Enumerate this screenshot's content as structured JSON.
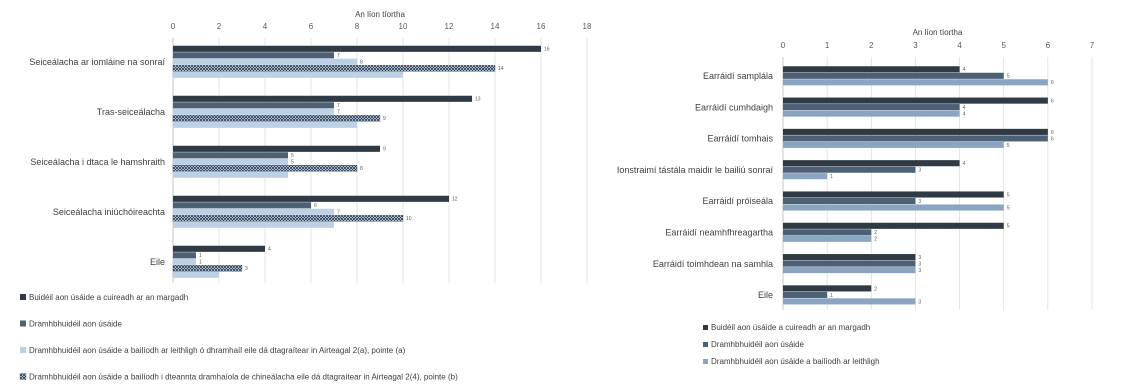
{
  "colors": {
    "dark": "#2f3a44",
    "mid": "#4c6175",
    "light": "#bcd0e6",
    "steel": "#8ba4c2",
    "hatch_fg": "#243b5a",
    "grid": "#d9d9d9",
    "axis": "#bfbfbf"
  },
  "chart_data": [
    {
      "type": "bar",
      "orientation": "horizontal",
      "title": "",
      "xlabel": "An líon tíortha",
      "ylabel": "",
      "xlim": [
        0,
        18
      ],
      "xticks": [
        0,
        2,
        4,
        6,
        8,
        10,
        12,
        14,
        16,
        18
      ],
      "grid": true,
      "legend_position": "bottom-left",
      "categories": [
        "Seiceálacha ar iomláine na sonraí",
        "Tras-seiceálacha",
        "Seiceálacha i dtaca le hamshraith",
        "Seiceálacha iniúchóireachta",
        "Eile"
      ],
      "series": [
        {
          "name": "Buidéil aon úsáide a cuireadh ar an margadh",
          "color": "dark",
          "values": [
            16,
            13,
            9,
            12,
            4
          ]
        },
        {
          "name": "Dramhbhuidéil aon úsáide",
          "color": "mid",
          "values": [
            7,
            7,
            5,
            6,
            1
          ]
        },
        {
          "name": "Dramhbhuidéil aon úsáide a bailíodh ar leithligh ó dhramhaíl eile dá dtagraítear in Airteagal 2(a), pointe (a)",
          "color": "light",
          "values": [
            8,
            7,
            5,
            7,
            1
          ]
        },
        {
          "name": "Dramhbhuidéil aon úsáide a bailíodh i dteannta dramhaíola de chineálacha eile dá dtagraítear in Airteagal 2(4), pointe (b)",
          "color": "hatch",
          "values": [
            14,
            9,
            8,
            10,
            3
          ]
        },
        {
          "name": "",
          "color": "light",
          "values": [
            10,
            8,
            5,
            7,
            2
          ]
        }
      ]
    },
    {
      "type": "bar",
      "orientation": "horizontal",
      "title": "",
      "xlabel": "An líon tíortha",
      "ylabel": "",
      "xlim": [
        0,
        7
      ],
      "xticks": [
        0,
        1,
        2,
        3,
        4,
        5,
        6,
        7
      ],
      "grid": true,
      "legend_position": "bottom-left",
      "categories": [
        "Earráidí samplála",
        "Earráidí cumhdaigh",
        "Earráidí tomhais",
        "Ionstraimí tástála maidir le bailiú sonraí",
        "Earráidí próiseála",
        "Earráidí neamhfhreagartha",
        "Earráidí toimhdean na samhla",
        "Eile"
      ],
      "series": [
        {
          "name": "Buidéil aon úsáide a cuireadh ar an margadh",
          "color": "dark",
          "values": [
            4,
            6,
            6,
            4,
            5,
            5,
            3,
            2
          ]
        },
        {
          "name": "Dramhbhuidéil aon úsáide",
          "color": "mid",
          "values": [
            5,
            4,
            6,
            3,
            3,
            2,
            3,
            1
          ]
        },
        {
          "name": "Dramhbhuidéil aon úsáide a bailíodh ar leithligh",
          "color": "steel",
          "values": [
            6,
            4,
            5,
            1,
            5,
            2,
            3,
            3
          ]
        }
      ]
    }
  ]
}
